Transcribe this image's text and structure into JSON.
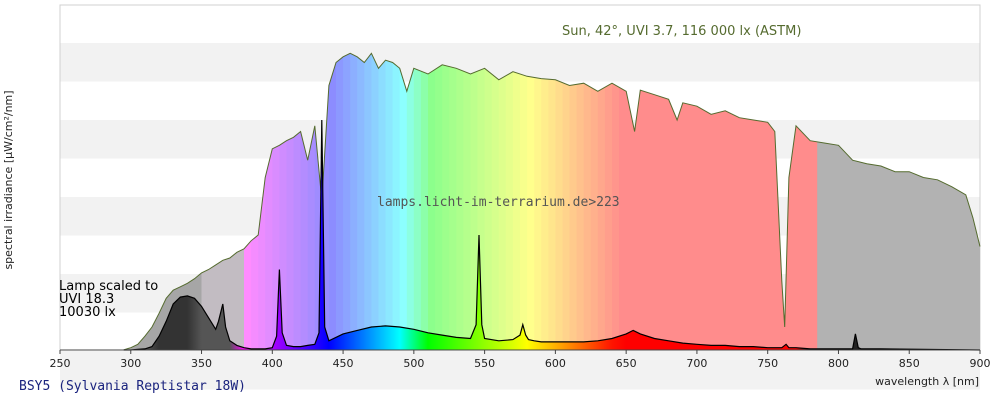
{
  "chart_data": {
    "type": "area",
    "xlabel": "wavelength λ [nm]",
    "ylabel": "spectral irradiance [µW/cm²/nm]",
    "xlim": [
      250,
      900
    ],
    "x_ticks": [
      250,
      300,
      350,
      400,
      450,
      500,
      550,
      600,
      650,
      700,
      750,
      800,
      850,
      900
    ],
    "grid": "horizontal bands",
    "annotations": {
      "sun": "Sun, 42°, UVI 3.7, 116 000 lx (ASTM)",
      "watermark": "lamps.licht-im-terrarium.de>223",
      "lamp_lines": [
        "Lamp scaled to",
        "UVI 18.3",
        "10030 lx"
      ]
    },
    "footer": "BSY5 (Sylvania Reptistar 18W)",
    "colors": {
      "sun_line": "#556b2f",
      "lamp_line": "#000000",
      "grid_band": "#f2f2f2"
    },
    "series": [
      {
        "name": "Sun",
        "x": [
          295,
          300,
          305,
          310,
          315,
          320,
          325,
          330,
          335,
          340,
          345,
          350,
          355,
          360,
          365,
          370,
          375,
          380,
          385,
          390,
          395,
          400,
          405,
          410,
          415,
          420,
          425,
          430,
          435,
          440,
          445,
          450,
          455,
          460,
          465,
          470,
          475,
          480,
          485,
          490,
          495,
          500,
          510,
          520,
          530,
          540,
          550,
          560,
          570,
          580,
          590,
          600,
          610,
          620,
          630,
          640,
          650,
          656,
          660,
          670,
          680,
          686,
          690,
          700,
          710,
          720,
          730,
          740,
          750,
          755,
          760,
          762,
          765,
          770,
          780,
          790,
          800,
          810,
          820,
          830,
          840,
          850,
          860,
          870,
          880,
          890,
          895,
          900
        ],
        "y": [
          0.2,
          2,
          5,
          12,
          20,
          32,
          45,
          52,
          55,
          58,
          62,
          67,
          70,
          74,
          78,
          80,
          85,
          88,
          95,
          100,
          150,
          175,
          178,
          182,
          185,
          190,
          165,
          195,
          130,
          230,
          250,
          255,
          258,
          255,
          250,
          258,
          245,
          252,
          250,
          245,
          225,
          245,
          240,
          248,
          245,
          240,
          245,
          235,
          242,
          238,
          236,
          235,
          230,
          232,
          225,
          232,
          225,
          190,
          226,
          222,
          218,
          200,
          215,
          212,
          205,
          208,
          202,
          200,
          198,
          190,
          60,
          20,
          150,
          195,
          182,
          180,
          178,
          165,
          162,
          160,
          155,
          155,
          150,
          148,
          142,
          135,
          115,
          90
        ]
      },
      {
        "name": "Lamp",
        "x": [
          295,
          300,
          305,
          310,
          315,
          320,
          325,
          330,
          335,
          340,
          345,
          350,
          355,
          360,
          362,
          365,
          367,
          370,
          375,
          380,
          385,
          390,
          395,
          400,
          403,
          405,
          407,
          410,
          415,
          420,
          425,
          430,
          433,
          435,
          437,
          440,
          450,
          460,
          470,
          480,
          490,
          500,
          510,
          520,
          530,
          540,
          544,
          546,
          548,
          550,
          560,
          570,
          575,
          577,
          579,
          581,
          585,
          590,
          600,
          610,
          620,
          630,
          640,
          650,
          655,
          660,
          670,
          680,
          690,
          700,
          710,
          720,
          730,
          740,
          750,
          760,
          763,
          765,
          770,
          780,
          790,
          800,
          810,
          812,
          814,
          816,
          820,
          830,
          900
        ],
        "y": [
          0,
          0,
          0.5,
          1,
          3,
          12,
          25,
          40,
          46,
          47,
          45,
          38,
          28,
          18,
          25,
          40,
          20,
          8,
          4,
          2,
          1,
          1,
          1,
          2,
          12,
          70,
          15,
          4,
          3,
          3,
          4,
          5,
          15,
          200,
          20,
          8,
          14,
          17,
          20,
          21,
          20,
          18,
          15,
          13,
          11,
          10,
          22,
          100,
          22,
          10,
          8,
          9,
          13,
          22,
          13,
          9,
          8,
          7,
          7,
          7,
          7,
          8,
          10,
          14,
          17,
          14,
          10,
          8,
          6,
          5,
          4,
          4,
          3,
          3,
          2,
          2,
          5,
          2,
          2,
          1,
          1,
          1,
          1,
          14,
          2,
          1,
          1,
          1,
          0
        ]
      }
    ]
  }
}
